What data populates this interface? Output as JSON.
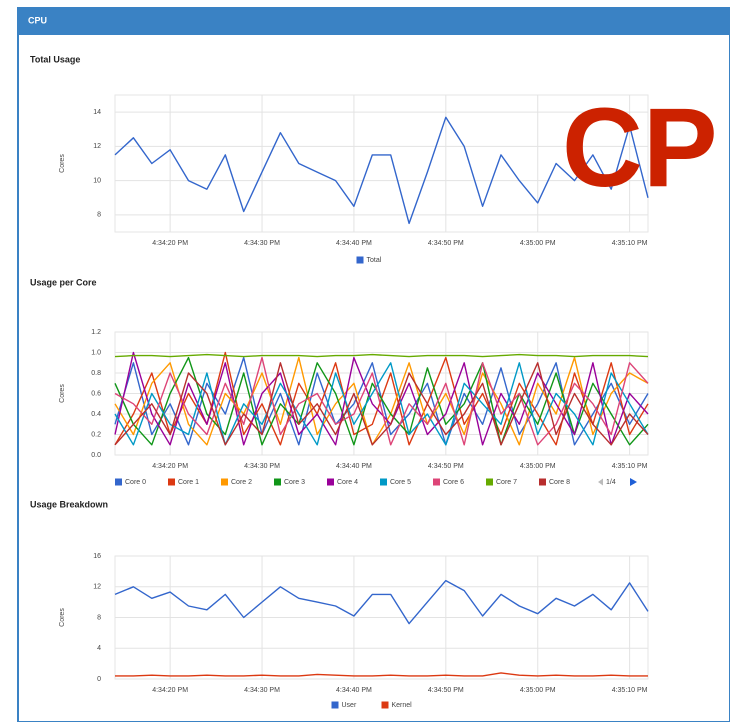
{
  "panel": {
    "title": "CPU",
    "overlay": "CP"
  },
  "chart_data": [
    {
      "type": "line",
      "title": "Total Usage",
      "y_label": "Cores",
      "categories": [
        null,
        null,
        null,
        "4:34:20 PM",
        null,
        null,
        null,
        null,
        "4:34:30 PM",
        null,
        null,
        null,
        null,
        "4:34:40 PM",
        null,
        null,
        null,
        null,
        "4:34:50 PM",
        null,
        null,
        null,
        null,
        "4:35:00 PM",
        null,
        null,
        null,
        null,
        "4:35:10 PM",
        null
      ],
      "series": [
        {
          "name": "Total",
          "color": "#3366cc",
          "values": [
            11.5,
            12.5,
            11,
            11.8,
            10,
            9.5,
            11.5,
            8.2,
            10.5,
            12.8,
            11,
            10.5,
            10,
            8.5,
            11.5,
            11.5,
            7.5,
            10.5,
            13.7,
            12,
            8.5,
            11.5,
            10,
            8.7,
            11,
            10,
            11.5,
            9.5,
            13.2,
            9
          ]
        }
      ],
      "ylim": [
        7,
        15
      ],
      "yticks": [
        8,
        10,
        12,
        14
      ],
      "grid": true
    },
    {
      "type": "line",
      "title": "Usage per Core",
      "y_label": "Cores",
      "legend_page": "1/4",
      "categories": [
        null,
        null,
        null,
        "4:34:20 PM",
        null,
        null,
        null,
        null,
        "4:34:30 PM",
        null,
        null,
        null,
        null,
        "4:34:40 PM",
        null,
        null,
        null,
        null,
        "4:34:50 PM",
        null,
        null,
        null,
        null,
        "4:35:00 PM",
        null,
        null,
        null,
        null,
        "4:35:10 PM",
        null
      ],
      "series": [
        {
          "name": "Core 0",
          "color": "#3366cc",
          "values": [
            0.3,
            0.9,
            0.2,
            0.5,
            0.1,
            0.7,
            0.4,
            0.95,
            0.2,
            0.6,
            0.1,
            0.8,
            0.3,
            0.5,
            0.9,
            0.2,
            0.4,
            0.7,
            0.1,
            0.6,
            0.3,
            0.85,
            0.2,
            0.5,
            0.9,
            0.1,
            0.4,
            0.7,
            0.3,
            0.6
          ]
        },
        {
          "name": "Core 1",
          "color": "#dc3912",
          "values": [
            0.1,
            0.4,
            0.8,
            0.2,
            0.6,
            0.3,
            1.0,
            0.2,
            0.5,
            0.1,
            0.7,
            0.4,
            0.9,
            0.2,
            0.3,
            0.8,
            0.1,
            0.5,
            0.95,
            0.3,
            0.6,
            0.2,
            0.7,
            0.4,
            0.1,
            0.8,
            0.3,
            0.9,
            0.2,
            0.5
          ]
        },
        {
          "name": "Core 2",
          "color": "#ff9900",
          "values": [
            0.5,
            0.2,
            0.7,
            0.9,
            0.3,
            0.1,
            0.6,
            0.4,
            0.8,
            0.3,
            0.95,
            0.2,
            0.5,
            0.7,
            0.1,
            0.4,
            0.9,
            0.3,
            0.6,
            0.2,
            0.8,
            0.5,
            0.1,
            0.7,
            0.4,
            0.95,
            0.2,
            0.6,
            0.8,
            0.7
          ]
        },
        {
          "name": "Core 3",
          "color": "#109618",
          "values": [
            0.7,
            0.3,
            0.1,
            0.6,
            0.95,
            0.4,
            0.2,
            0.8,
            0.1,
            0.5,
            0.3,
            0.9,
            0.6,
            0.1,
            0.7,
            0.4,
            0.2,
            0.85,
            0.3,
            0.5,
            0.9,
            0.1,
            0.6,
            0.3,
            0.8,
            0.2,
            0.7,
            0.4,
            0.1,
            0.3
          ]
        },
        {
          "name": "Core 4",
          "color": "#990099",
          "values": [
            0.2,
            1.0,
            0.4,
            0.1,
            0.7,
            0.3,
            0.9,
            0.1,
            0.6,
            0.8,
            0.2,
            0.4,
            0.1,
            0.95,
            0.5,
            0.3,
            0.7,
            0.2,
            0.4,
            0.9,
            0.1,
            0.6,
            0.3,
            0.8,
            0.5,
            0.2,
            0.9,
            0.1,
            0.6,
            0.4
          ]
        },
        {
          "name": "Core 5",
          "color": "#0099c6",
          "values": [
            0.4,
            0.1,
            0.6,
            0.3,
            0.2,
            0.8,
            0.1,
            0.5,
            0.3,
            0.7,
            0.4,
            0.1,
            0.8,
            0.3,
            0.6,
            0.9,
            0.2,
            0.4,
            0.1,
            0.7,
            0.5,
            0.3,
            0.9,
            0.2,
            0.6,
            0.4,
            0.1,
            0.8,
            0.5,
            0.2
          ]
        },
        {
          "name": "Core 6",
          "color": "#dd4477",
          "values": [
            0.6,
            0.5,
            0.3,
            0.8,
            0.4,
            0.2,
            0.7,
            0.3,
            0.95,
            0.2,
            0.5,
            0.6,
            0.3,
            0.4,
            0.8,
            0.1,
            0.5,
            0.3,
            0.7,
            0.1,
            0.9,
            0.4,
            0.6,
            0.1,
            0.3,
            0.7,
            0.5,
            0.2,
            0.9,
            0.7
          ]
        },
        {
          "name": "Core 7",
          "color": "#66aa00",
          "values": [
            0.96,
            0.97,
            0.97,
            0.96,
            0.97,
            0.98,
            0.97,
            0.96,
            0.97,
            0.97,
            0.97,
            0.96,
            0.97,
            0.97,
            0.98,
            0.97,
            0.96,
            0.97,
            0.97,
            0.97,
            0.96,
            0.97,
            0.98,
            0.97,
            0.97,
            0.96,
            0.97,
            0.97,
            0.97,
            0.96
          ]
        },
        {
          "name": "Core 8",
          "color": "#b82e2e",
          "values": [
            0.1,
            0.3,
            0.5,
            0.2,
            0.8,
            0.6,
            0.1,
            0.4,
            0.2,
            0.9,
            0.3,
            0.5,
            0.2,
            0.6,
            0.1,
            0.3,
            0.8,
            0.5,
            0.2,
            0.4,
            0.7,
            0.1,
            0.5,
            0.9,
            0.2,
            0.6,
            0.3,
            0.1,
            0.4,
            0.2
          ]
        }
      ],
      "ylim": [
        0,
        1.2
      ],
      "yticks": [
        {
          "value": 0,
          "label": "0.0"
        },
        0.2,
        0.4,
        0.6,
        0.8,
        {
          "value": 1,
          "label": "1.0"
        },
        1.2
      ],
      "grid": true
    },
    {
      "type": "line",
      "title": "Usage Breakdown",
      "y_label": "Cores",
      "categories": [
        null,
        null,
        null,
        "4:34:20 PM",
        null,
        null,
        null,
        null,
        "4:34:30 PM",
        null,
        null,
        null,
        null,
        "4:34:40 PM",
        null,
        null,
        null,
        null,
        "4:34:50 PM",
        null,
        null,
        null,
        null,
        "4:35:00 PM",
        null,
        null,
        null,
        null,
        "4:35:10 PM",
        null
      ],
      "series": [
        {
          "name": "User",
          "color": "#3366cc",
          "values": [
            11,
            12,
            10.5,
            11.3,
            9.5,
            9,
            11,
            8,
            10,
            12,
            10.5,
            10,
            9.5,
            8.2,
            11,
            11,
            7.2,
            10,
            12.8,
            11.5,
            8.2,
            11,
            9.5,
            8.5,
            10.5,
            9.5,
            11,
            9,
            12.5,
            8.8
          ]
        },
        {
          "name": "Kernel",
          "color": "#dc3912",
          "values": [
            0.4,
            0.4,
            0.5,
            0.4,
            0.4,
            0.5,
            0.4,
            0.4,
            0.5,
            0.4,
            0.4,
            0.6,
            0.5,
            0.4,
            0.4,
            0.5,
            0.4,
            0.4,
            0.5,
            0.4,
            0.4,
            0.8,
            0.5,
            0.4,
            0.5,
            0.4,
            0.4,
            0.5,
            0.4,
            0.4
          ]
        }
      ],
      "ylim": [
        0,
        16
      ],
      "yticks": [
        0,
        4,
        8,
        12,
        16
      ],
      "grid": true
    }
  ]
}
